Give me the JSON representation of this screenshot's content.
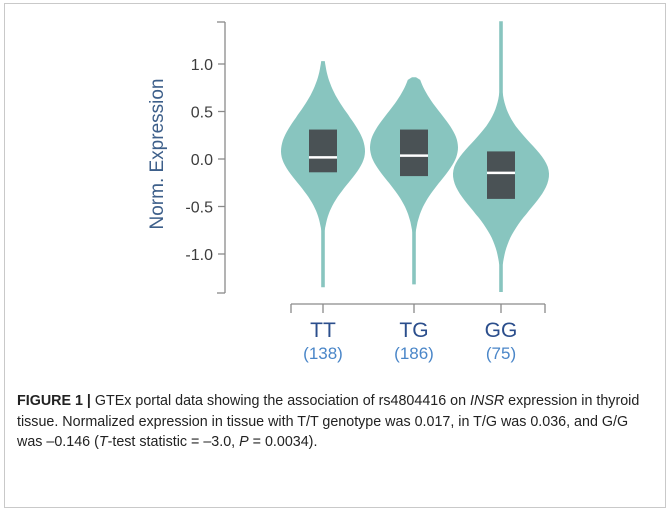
{
  "chart_data": {
    "type": "violin",
    "ylabel": "Norm. Expression",
    "ylim": [
      -1.45,
      1.45
    ],
    "yticks": [
      {
        "value": 1.0,
        "label": "1.0"
      },
      {
        "value": 0.5,
        "label": "0.5"
      },
      {
        "value": 0.0,
        "label": "0.0"
      },
      {
        "value": -0.5,
        "label": "-0.5"
      },
      {
        "value": -1.0,
        "label": "-1.0"
      }
    ],
    "groups": [
      {
        "genotype": "TT",
        "n_label": "(138)",
        "median": 0.017,
        "q1": -0.14,
        "q3": 0.31,
        "min": -1.35,
        "max": 1.03
      },
      {
        "genotype": "TG",
        "n_label": "(186)",
        "median": 0.036,
        "q1": -0.18,
        "q3": 0.31,
        "min": -1.32,
        "max": 0.86
      },
      {
        "genotype": "GG",
        "n_label": "(75)",
        "median": -0.146,
        "q1": -0.42,
        "q3": 0.08,
        "min": -1.4,
        "max": 1.45
      }
    ],
    "grid": false,
    "legend": "none",
    "colors": {
      "violin": "#88c5bf",
      "box": "#4a5255",
      "median": "#ffffff",
      "axis": "#8a8a8a",
      "tick_text": "#3d3d3d",
      "group_text": "#2b4e8c",
      "n_text": "#4a86c8"
    }
  },
  "caption": {
    "label": "FIGURE 1 |",
    "t1": " GTEx portal data showing the association of rs4804416 on ",
    "gene": "INSR",
    "t2": " expression in thyroid tissue. Normalized expression in tissue with T/T genotype was 0.017, in T/G was 0.036, and G/G was –0.146 (",
    "test_var": "T",
    "t3": "-test statistic = –3.0, ",
    "p_var": "P",
    "t4": " = 0.0034)."
  }
}
